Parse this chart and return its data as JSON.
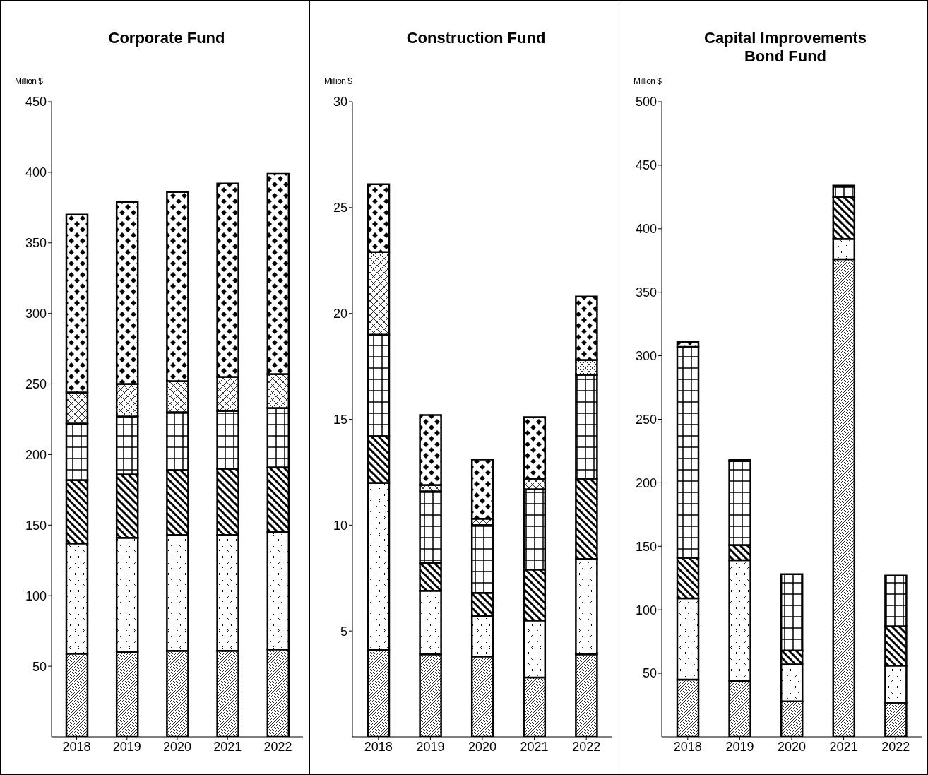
{
  "chart_data": [
    {
      "type": "bar",
      "title": "Corporate Fund",
      "ylabel": "Million $",
      "categories": [
        "2018",
        "2019",
        "2020",
        "2021",
        "2022"
      ],
      "stacked": true,
      "ylim": [
        0,
        450
      ],
      "yticks": [
        50,
        100,
        150,
        200,
        250,
        300,
        350,
        400,
        450
      ],
      "grid": false,
      "legend": false,
      "series": [
        {
          "color": "#000000",
          "values": [
            59,
            60,
            61,
            61,
            62
          ]
        },
        {
          "color": "#000000",
          "values": [
            78,
            81,
            82,
            82,
            83
          ]
        },
        {
          "color": "#000000",
          "values": [
            45,
            45,
            46,
            47,
            46
          ]
        },
        {
          "color": "#000000",
          "values": [
            40,
            41,
            41,
            41,
            42
          ]
        },
        {
          "color": "#000000",
          "values": [
            22,
            23,
            22,
            24,
            24
          ]
        },
        {
          "color": "#000000",
          "values": [
            126,
            129,
            134,
            137,
            142
          ]
        }
      ]
    },
    {
      "type": "bar",
      "title": "Construction Fund",
      "ylabel": "Million $",
      "categories": [
        "2018",
        "2019",
        "2020",
        "2021",
        "2022"
      ],
      "stacked": true,
      "ylim": [
        0,
        30
      ],
      "yticks": [
        5,
        10,
        15,
        20,
        25,
        30
      ],
      "grid": false,
      "legend": false,
      "series": [
        {
          "color": "#000000",
          "values": [
            4.1,
            3.9,
            3.8,
            2.8,
            3.9
          ]
        },
        {
          "color": "#000000",
          "values": [
            7.9,
            3.0,
            1.9,
            2.7,
            4.5
          ]
        },
        {
          "color": "#000000",
          "values": [
            2.2,
            1.3,
            1.1,
            2.4,
            3.8
          ]
        },
        {
          "color": "#000000",
          "values": [
            4.8,
            3.4,
            3.2,
            3.8,
            4.9
          ]
        },
        {
          "color": "#000000",
          "values": [
            3.9,
            0.3,
            0.3,
            0.5,
            0.7
          ]
        },
        {
          "color": "#000000",
          "values": [
            3.2,
            3.3,
            2.8,
            2.9,
            3.0
          ]
        }
      ]
    },
    {
      "type": "bar",
      "title": "Capital Improvements Bond Fund",
      "ylabel": "Million $",
      "categories": [
        "2018",
        "2019",
        "2020",
        "2021",
        "2022"
      ],
      "stacked": true,
      "ylim": [
        0,
        500
      ],
      "yticks": [
        50,
        100,
        150,
        200,
        250,
        300,
        350,
        400,
        450,
        500
      ],
      "grid": false,
      "legend": false,
      "series": [
        {
          "color": "#000000",
          "values": [
            45,
            44,
            28,
            376,
            27
          ]
        },
        {
          "color": "#000000",
          "values": [
            64,
            95,
            29,
            16,
            29
          ]
        },
        {
          "color": "#000000",
          "values": [
            32,
            12,
            11,
            33,
            31
          ]
        },
        {
          "color": "#000000",
          "values": [
            166,
            66,
            60,
            9,
            40
          ]
        },
        {
          "color": "#000000",
          "values": [
            null,
            null,
            null,
            null,
            null
          ]
        },
        {
          "color": "#000000",
          "values": [
            4,
            1,
            null,
            null,
            null
          ]
        }
      ]
    }
  ]
}
